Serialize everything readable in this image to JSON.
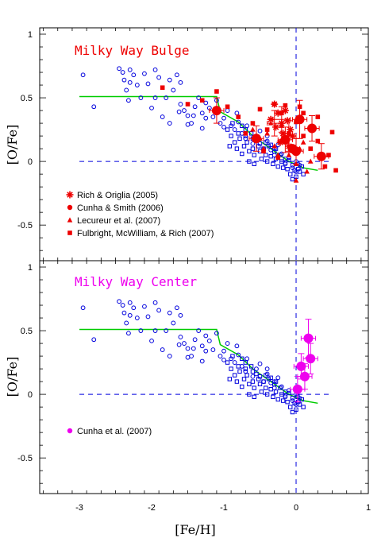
{
  "figure": {
    "xlabel": "[Fe/H]",
    "ylabel": "[O/Fe]",
    "xlim": [
      -3.55,
      1.0
    ],
    "xticks": [
      -3,
      -2,
      -1,
      0,
      1
    ],
    "xtick_labels": [
      "-3",
      "-2",
      "-1",
      "0",
      "1"
    ]
  },
  "colors": {
    "disk_points": "#0000dd",
    "model_line": "#00cc00",
    "reference_lines": "#0000dd",
    "bulge": "#ee0000",
    "center": "#ee00ee"
  },
  "chart_data": [
    {
      "type": "scatter",
      "title": "Milky Way Bulge",
      "title_color": "#ee0000",
      "xlabel": "[Fe/H]",
      "ylabel": "[O/Fe]",
      "xlim": [
        -3.55,
        1.0
      ],
      "ylim": [
        -0.78,
        1.05
      ],
      "yticks": [
        -0.5,
        0,
        0.5,
        1
      ],
      "ytick_labels": [
        "-0.5",
        "0",
        "0.5",
        "1"
      ],
      "legend_position": "bottom-left",
      "reference_lines": {
        "horizontal_y": 0,
        "horizontal_x_from": -3.0,
        "vertical_x": 0
      },
      "model_line": {
        "x": [
          -3.0,
          -1.1,
          -1.05,
          -0.8,
          -0.6,
          -0.3,
          -0.1,
          0.1,
          0.3
        ],
        "y": [
          0.51,
          0.51,
          0.39,
          0.31,
          0.2,
          0.08,
          0.0,
          -0.05,
          -0.07
        ]
      },
      "series": [
        {
          "name": "Rich & Origlia (2005)",
          "marker": "asterisk",
          "points": [
            [
              -0.3,
              0.45
            ],
            [
              -0.25,
              0.38
            ],
            [
              -0.2,
              0.3
            ],
            [
              -0.18,
              0.22
            ],
            [
              -0.15,
              0.4
            ],
            [
              -0.12,
              0.32
            ],
            [
              -0.22,
              0.15
            ],
            [
              -0.08,
              0.25
            ],
            [
              -0.28,
              0.27
            ],
            [
              -0.35,
              0.33
            ],
            [
              -0.1,
              0.12
            ],
            [
              -0.05,
              0.2
            ]
          ],
          "errors": [
            [
              -0.2,
              0.33,
              0.12,
              0.1
            ],
            [
              -0.1,
              0.2,
              0.1,
              0.12
            ],
            [
              -0.3,
              0.3,
              0.1,
              0.1
            ]
          ]
        },
        {
          "name": "Cunha & Smith (2006)",
          "marker": "circle",
          "points": [
            [
              -1.1,
              0.4
            ],
            [
              -0.55,
              0.18
            ],
            [
              -0.15,
              0.17
            ],
            [
              -0.05,
              0.1
            ],
            [
              0.0,
              0.08
            ],
            [
              0.05,
              0.33
            ],
            [
              0.22,
              0.26
            ],
            [
              0.35,
              0.04
            ]
          ],
          "errors": [
            [
              -1.1,
              0.4,
              0.1,
              0.1
            ],
            [
              -0.55,
              0.18,
              0.1,
              0.1
            ],
            [
              -0.15,
              0.17,
              0.1,
              0.1
            ],
            [
              0.0,
              0.08,
              0.1,
              0.1
            ],
            [
              0.05,
              0.33,
              0.1,
              0.15
            ],
            [
              0.22,
              0.26,
              0.1,
              0.1
            ],
            [
              0.35,
              0.04,
              0.1,
              0.1
            ]
          ]
        },
        {
          "name": "Lecureur et al. (2007)",
          "marker": "triangle",
          "points": [
            [
              -0.6,
              0.25
            ],
            [
              -0.5,
              0.18
            ],
            [
              -0.4,
              0.22
            ],
            [
              -0.3,
              0.12
            ],
            [
              -0.2,
              0.28
            ],
            [
              -0.1,
              0.05
            ],
            [
              0.0,
              -0.02
            ],
            [
              0.05,
              0.1
            ],
            [
              0.1,
              0.15
            ],
            [
              0.15,
              -0.08
            ],
            [
              -0.25,
              0.05
            ],
            [
              -0.35,
              0.3
            ],
            [
              -0.45,
              0.1
            ],
            [
              0.0,
              -0.15
            ],
            [
              0.2,
              0.0
            ]
          ]
        },
        {
          "name": "Fulbright, McWilliam, & Rich (2007)",
          "marker": "square",
          "points": [
            [
              -1.85,
              0.58
            ],
            [
              -1.5,
              0.45
            ],
            [
              -1.3,
              0.48
            ],
            [
              -1.1,
              0.55
            ],
            [
              -0.95,
              0.43
            ],
            [
              -0.8,
              0.35
            ],
            [
              -0.7,
              0.22
            ],
            [
              -0.6,
              0.3
            ],
            [
              -0.5,
              0.41
            ],
            [
              -0.4,
              0.25
            ],
            [
              -0.3,
              0.45
            ],
            [
              -0.2,
              0.38
            ],
            [
              -0.1,
              0.22
            ],
            [
              0.0,
              0.31
            ],
            [
              0.1,
              0.2
            ],
            [
              0.2,
              0.1
            ],
            [
              0.3,
              0.16
            ],
            [
              0.4,
              -0.04
            ],
            [
              0.45,
              0.05
            ],
            [
              0.5,
              0.23
            ],
            [
              0.55,
              -0.07
            ],
            [
              -0.15,
              0.44
            ],
            [
              0.1,
              0.38
            ],
            [
              -0.45,
              0.08
            ],
            [
              -0.25,
              0.03
            ],
            [
              0.05,
              0.43
            ],
            [
              0.3,
              0.35
            ]
          ]
        }
      ]
    },
    {
      "type": "scatter",
      "title": "Milky Way Center",
      "title_color": "#ee00ee",
      "xlabel": "[Fe/H]",
      "ylabel": "[O/Fe]",
      "xlim": [
        -3.55,
        1.0
      ],
      "ylim": [
        -0.78,
        1.05
      ],
      "yticks": [
        -0.5,
        0,
        0.5,
        1
      ],
      "ytick_labels": [
        "-0.5",
        "0",
        "0.5",
        "1"
      ],
      "legend_position": "bottom-left",
      "reference_lines": {
        "horizontal_y": 0,
        "horizontal_x_from": -3.0,
        "vertical_x": 0
      },
      "model_line": {
        "x": [
          -3.0,
          -1.1,
          -1.05,
          -0.8,
          -0.6,
          -0.3,
          -0.1,
          0.1,
          0.3
        ],
        "y": [
          0.51,
          0.51,
          0.39,
          0.31,
          0.2,
          0.08,
          0.0,
          -0.05,
          -0.07
        ]
      },
      "series": [
        {
          "name": "Cunha et al. (2007)",
          "marker": "circle",
          "points": [
            [
              0.02,
              0.04
            ],
            [
              0.07,
              0.22
            ],
            [
              0.12,
              0.14
            ],
            [
              0.17,
              0.44
            ],
            [
              0.2,
              0.28
            ]
          ],
          "errors": [
            [
              0.02,
              0.04,
              0.1,
              0.1
            ],
            [
              0.07,
              0.22,
              0.1,
              0.1
            ],
            [
              0.12,
              0.14,
              0.1,
              0.1
            ],
            [
              0.17,
              0.44,
              0.1,
              0.15
            ],
            [
              0.2,
              0.28,
              0.1,
              0.12
            ]
          ]
        }
      ]
    }
  ],
  "disk_data": {
    "circles": [
      [
        -2.95,
        0.68
      ],
      [
        -2.8,
        0.43
      ],
      [
        -2.45,
        0.73
      ],
      [
        -2.4,
        0.7
      ],
      [
        -2.38,
        0.64
      ],
      [
        -2.35,
        0.56
      ],
      [
        -2.3,
        0.62
      ],
      [
        -2.3,
        0.72
      ],
      [
        -2.25,
        0.68
      ],
      [
        -2.2,
        0.6
      ],
      [
        -2.15,
        0.5
      ],
      [
        -2.1,
        0.69
      ],
      [
        -2.0,
        0.42
      ],
      [
        -1.95,
        0.72
      ],
      [
        -1.9,
        0.66
      ],
      [
        -1.85,
        0.35
      ],
      [
        -1.8,
        0.5
      ],
      [
        -1.75,
        0.64
      ],
      [
        -1.7,
        0.56
      ],
      [
        -1.65,
        0.68
      ],
      [
        -1.6,
        0.45
      ],
      [
        -1.55,
        0.4
      ],
      [
        -1.5,
        0.36
      ],
      [
        -1.45,
        0.3
      ],
      [
        -1.4,
        0.43
      ],
      [
        -1.35,
        0.5
      ],
      [
        -1.3,
        0.38
      ],
      [
        -1.25,
        0.46
      ],
      [
        -1.2,
        0.42
      ],
      [
        -1.15,
        0.35
      ],
      [
        -1.1,
        0.48
      ],
      [
        -1.05,
        0.3
      ],
      [
        -1.0,
        0.34
      ],
      [
        -0.95,
        0.4
      ],
      [
        -0.9,
        0.28
      ],
      [
        -0.85,
        0.25
      ],
      [
        -0.8,
        0.31
      ],
      [
        -0.75,
        0.22
      ],
      [
        -0.7,
        0.18
      ],
      [
        -0.68,
        0.28
      ],
      [
        -0.6,
        0.14
      ],
      [
        -0.55,
        0.2
      ],
      [
        -0.5,
        0.24
      ],
      [
        -0.45,
        0.1
      ],
      [
        -0.4,
        0.16
      ],
      [
        -0.35,
        0.09
      ],
      [
        -0.3,
        0.05
      ],
      [
        -0.25,
        0.13
      ],
      [
        -0.2,
        0.06
      ],
      [
        -0.15,
        -0.02
      ],
      [
        -0.1,
        0.03
      ],
      [
        -0.05,
        -0.05
      ],
      [
        0.0,
        -0.08
      ],
      [
        0.05,
        -0.03
      ],
      [
        -1.6,
        0.62
      ],
      [
        -2.05,
        0.61
      ],
      [
        -1.95,
        0.5
      ],
      [
        -1.5,
        0.29
      ],
      [
        -1.3,
        0.26
      ],
      [
        -1.25,
        0.34
      ],
      [
        -0.82,
        0.38
      ],
      [
        -0.4,
        0.2
      ],
      [
        -0.3,
        0.1
      ],
      [
        0.0,
        0.0
      ],
      [
        -1.0,
        0.27
      ],
      [
        -1.75,
        0.3
      ],
      [
        -1.42,
        0.36
      ],
      [
        -1.62,
        0.39
      ],
      [
        -2.32,
        0.48
      ]
    ],
    "squares": [
      [
        -0.95,
        0.25
      ],
      [
        -0.9,
        0.2
      ],
      [
        -0.88,
        0.3
      ],
      [
        -0.85,
        0.15
      ],
      [
        -0.8,
        0.22
      ],
      [
        -0.78,
        0.18
      ],
      [
        -0.75,
        0.28
      ],
      [
        -0.72,
        0.12
      ],
      [
        -0.7,
        0.2
      ],
      [
        -0.68,
        0.15
      ],
      [
        -0.65,
        0.08
      ],
      [
        -0.62,
        0.22
      ],
      [
        -0.6,
        0.1
      ],
      [
        -0.58,
        0.05
      ],
      [
        -0.55,
        0.16
      ],
      [
        -0.52,
        0.12
      ],
      [
        -0.5,
        0.08
      ],
      [
        -0.48,
        0.02
      ],
      [
        -0.45,
        0.1
      ],
      [
        -0.42,
        0.05
      ],
      [
        -0.4,
        0.0
      ],
      [
        -0.38,
        0.12
      ],
      [
        -0.35,
        0.04
      ],
      [
        -0.32,
        -0.02
      ],
      [
        -0.3,
        0.08
      ],
      [
        -0.28,
        0.02
      ],
      [
        -0.25,
        -0.04
      ],
      [
        -0.22,
        0.05
      ],
      [
        -0.2,
        0.0
      ],
      [
        -0.18,
        -0.05
      ],
      [
        -0.15,
        0.02
      ],
      [
        -0.12,
        -0.06
      ],
      [
        -0.1,
        0.01
      ],
      [
        -0.08,
        -0.1
      ],
      [
        -0.05,
        -0.03
      ],
      [
        -0.02,
        -0.07
      ],
      [
        0.0,
        -0.12
      ],
      [
        0.02,
        -0.02
      ],
      [
        0.05,
        -0.08
      ],
      [
        0.08,
        -0.04
      ],
      [
        0.1,
        -0.1
      ],
      [
        -0.6,
        0.18
      ],
      [
        -0.7,
        0.25
      ],
      [
        -0.5,
        0.14
      ],
      [
        -0.42,
        0.15
      ],
      [
        -0.35,
        0.13
      ],
      [
        -0.28,
        0.1
      ],
      [
        -0.15,
        -0.01
      ],
      [
        -0.05,
        -0.14
      ],
      [
        0.03,
        -0.06
      ],
      [
        -0.82,
        0.1
      ],
      [
        -0.92,
        0.12
      ],
      [
        -0.65,
        0.0
      ],
      [
        -0.58,
        -0.02
      ],
      [
        -0.75,
        0.06
      ]
    ]
  }
}
